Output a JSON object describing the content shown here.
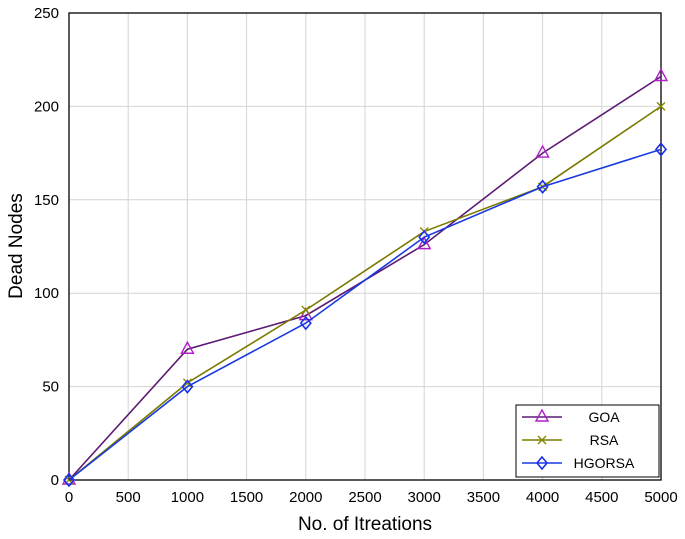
{
  "chart_data": {
    "type": "line",
    "xlabel": "No. of Itreations",
    "ylabel": "Dead Nodes",
    "xlim": [
      0,
      5000
    ],
    "ylim": [
      0,
      250
    ],
    "x": [
      0,
      1000,
      2000,
      3000,
      4000,
      5000
    ],
    "xticks": [
      0,
      500,
      1000,
      1500,
      2000,
      2500,
      3000,
      3500,
      4000,
      4500,
      5000
    ],
    "yticks": [
      0,
      50,
      100,
      150,
      200,
      250
    ],
    "grid": true,
    "legend_position": "bottom-right",
    "series": [
      {
        "name": "GOA",
        "values": [
          0,
          70,
          88,
          126,
          175,
          216
        ],
        "color": "#5c1a73",
        "marker_color": "#b01ec8",
        "marker": "triangle"
      },
      {
        "name": "RSA",
        "values": [
          0,
          52,
          91,
          133,
          157,
          200
        ],
        "color": "#7a7a00",
        "marker_color": "#8a8a00",
        "marker": "x"
      },
      {
        "name": "HGORSA",
        "values": [
          0,
          50,
          84,
          130,
          157,
          177
        ],
        "color": "#1a3adf",
        "marker_color": "#1a2ff0",
        "marker": "diamond"
      }
    ]
  }
}
